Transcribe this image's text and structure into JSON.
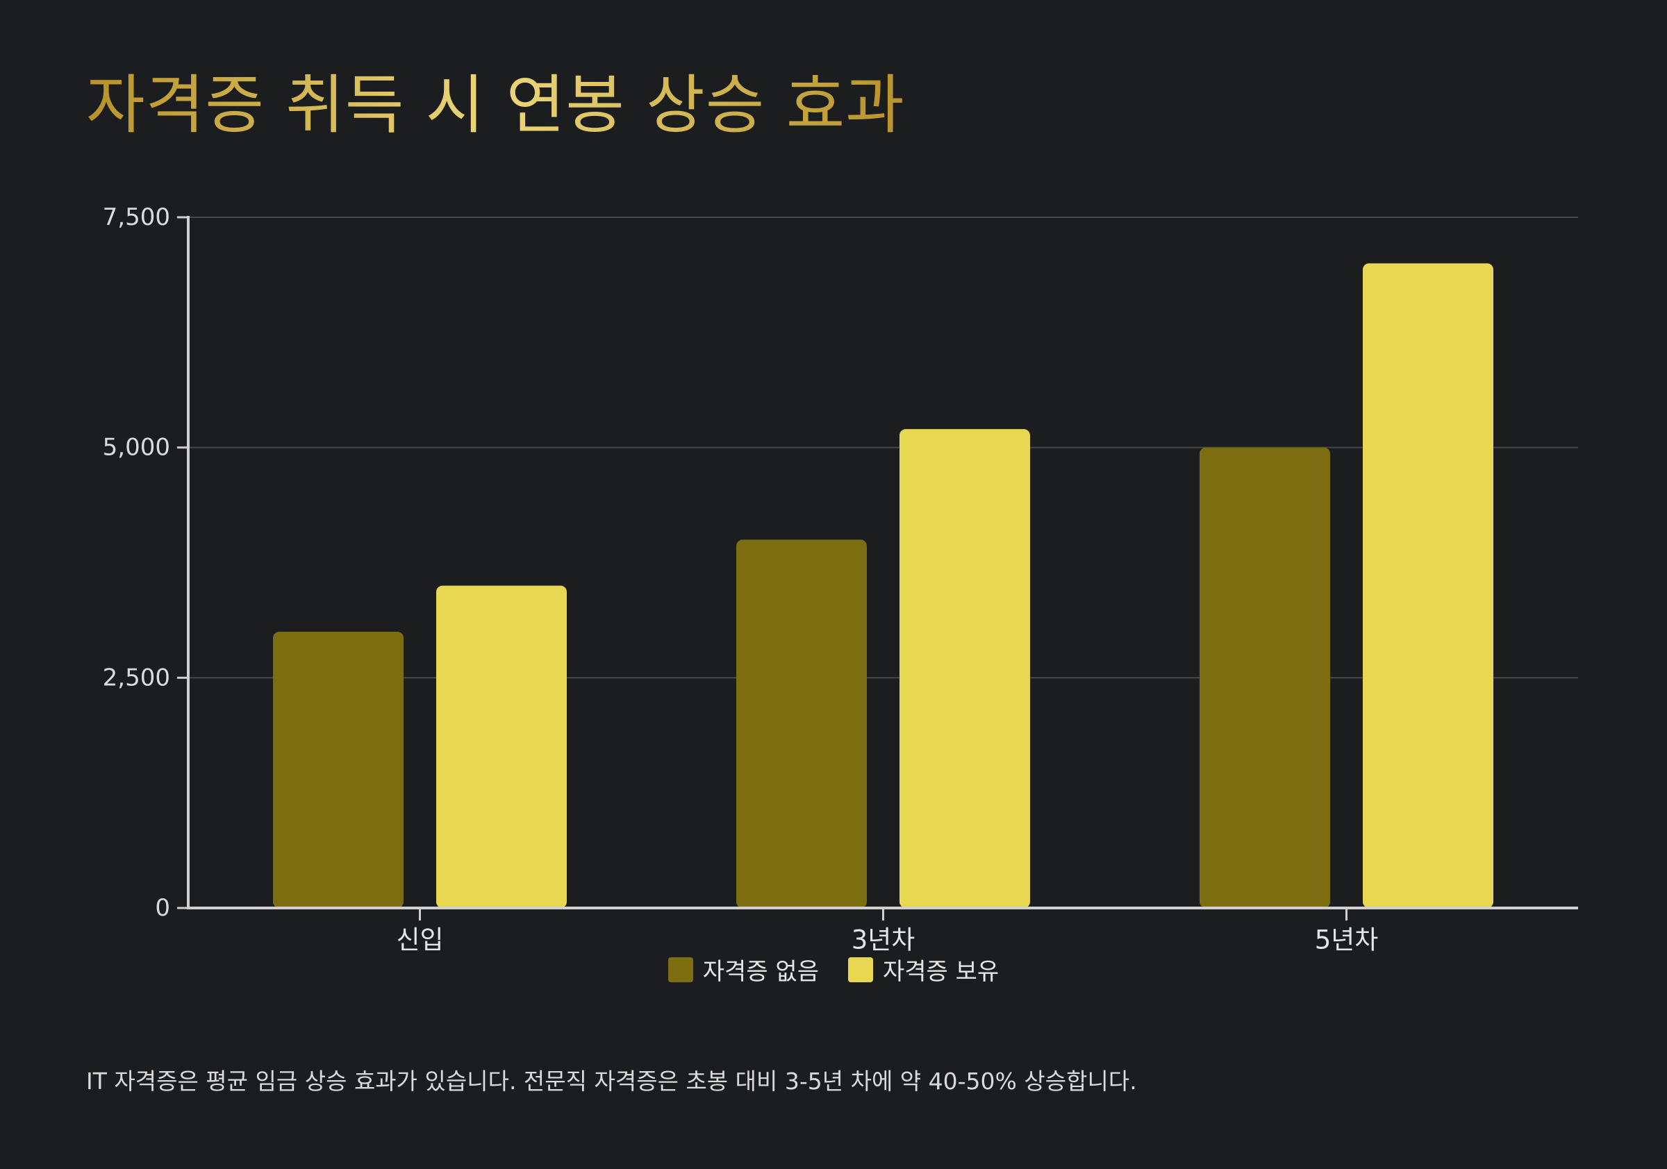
{
  "title": "자격증 취득 시 연봉 상승 효과",
  "footnote": "IT 자격증은 평균 임금 상승 효과가 있습니다. 전문직 자격증은 초봉 대비 3-5년 차에 약 40-50% 상승합니다.",
  "chart_data": {
    "type": "bar",
    "title": "자격증 취득 시 연봉 상승 효과",
    "xlabel": "",
    "ylabel": "",
    "categories": [
      "신입",
      "3년차",
      "5년차"
    ],
    "series": [
      {
        "name": "자격증 없음",
        "values": [
          3000,
          4000,
          5000
        ],
        "color": "#7b6d10"
      },
      {
        "name": "자격증 보유",
        "values": [
          3500,
          5200,
          7000
        ],
        "color": "#e8d750"
      }
    ],
    "ylim": [
      0,
      7500
    ],
    "yticks": [
      0,
      2500,
      5000,
      7500
    ],
    "ytick_labels": [
      "0",
      "2,500",
      "5,000",
      "7,500"
    ],
    "grid": true,
    "legend": "bottom-center"
  }
}
